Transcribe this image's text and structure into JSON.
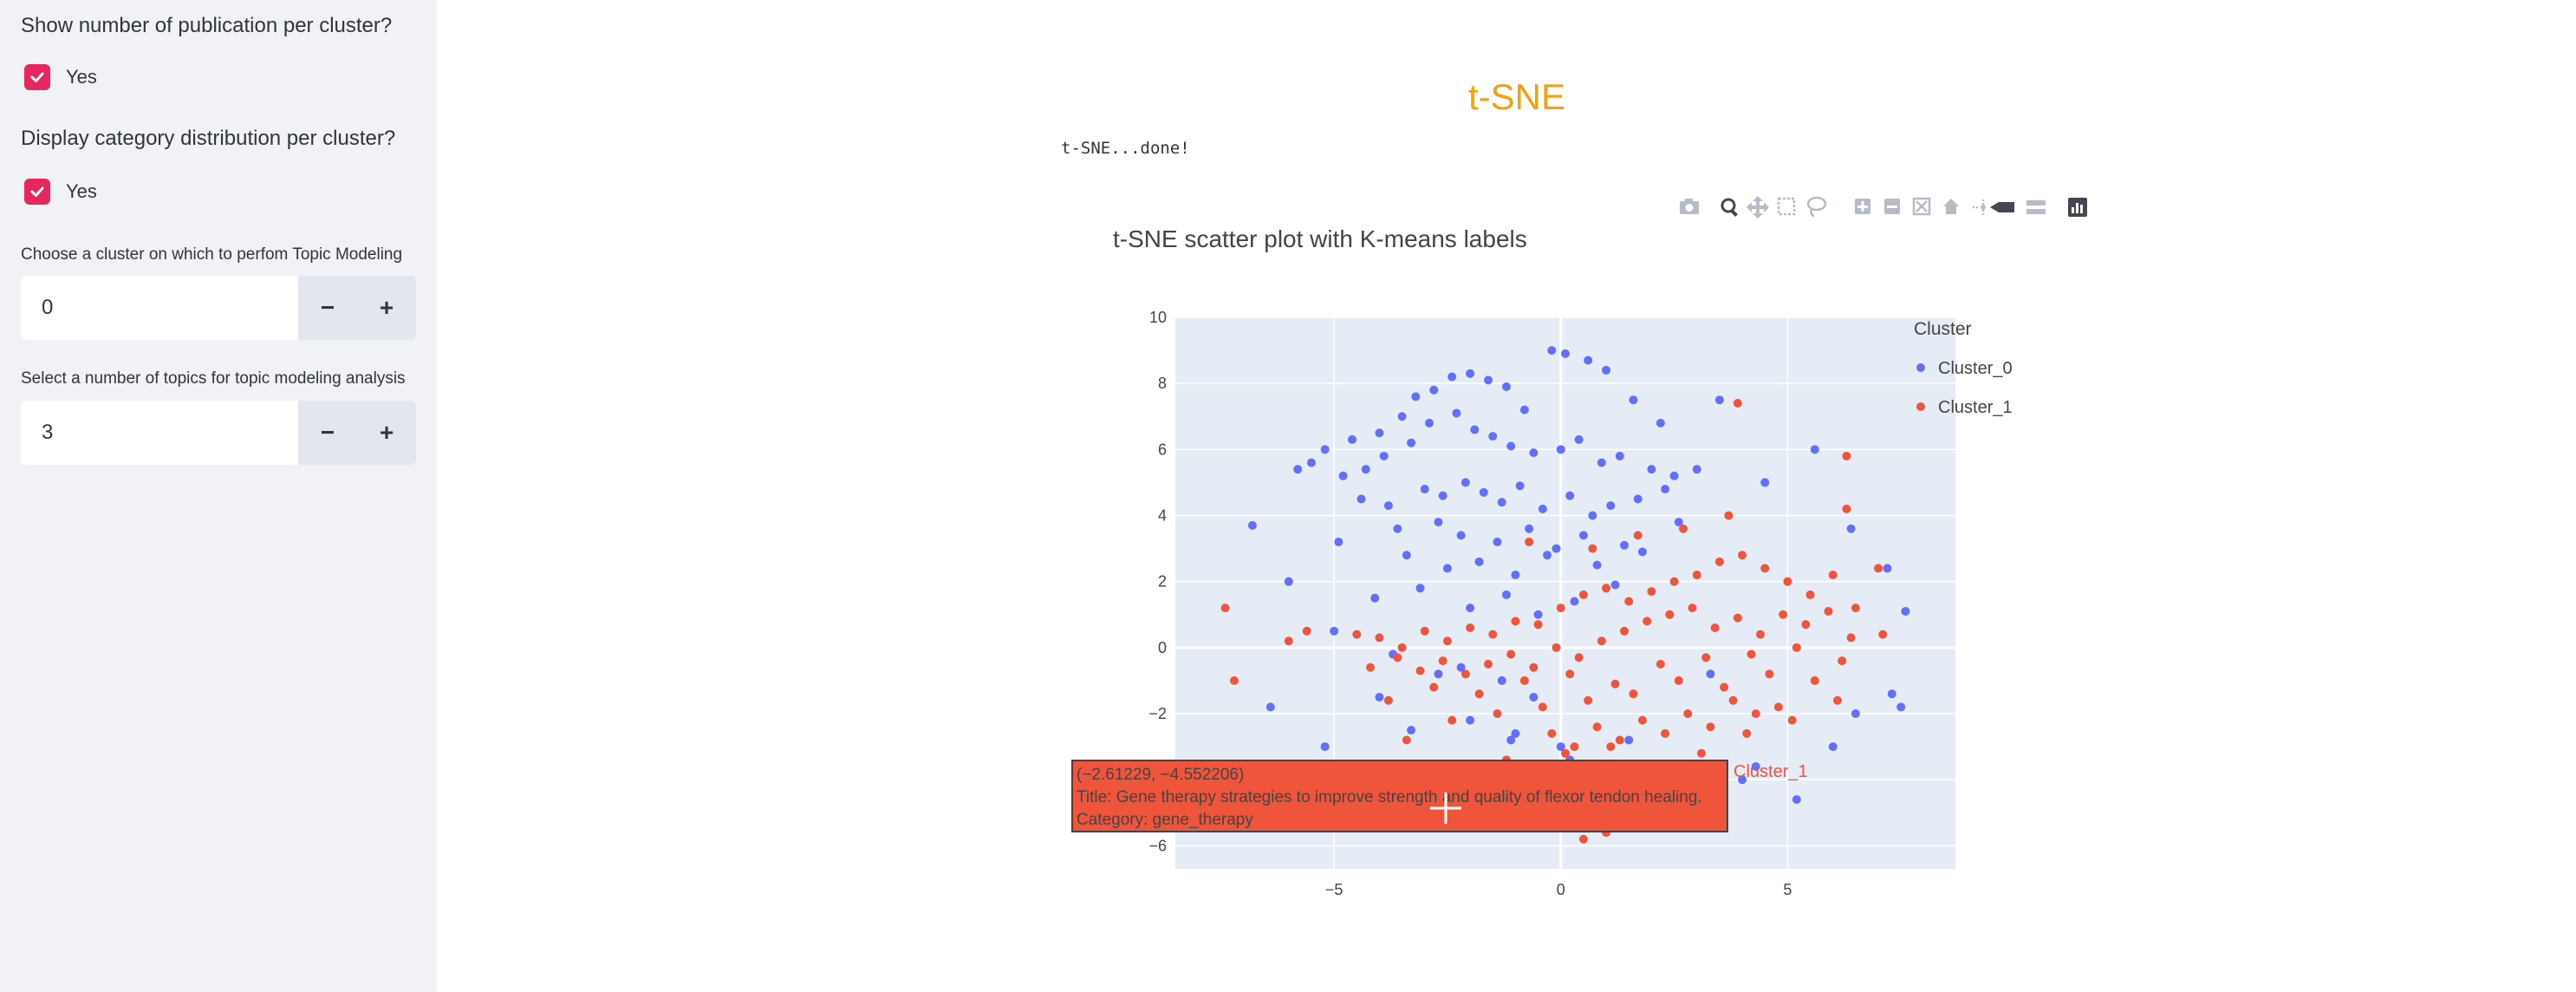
{
  "sidebar": {
    "q_publications": "Show number of publication per cluster?",
    "q_publications_option": "Yes",
    "q_category": "Display category distribution per cluster?",
    "q_category_option": "Yes",
    "cluster_label": "Choose a cluster on which to perfom Topic Modeling",
    "cluster_value": "0",
    "topics_label": "Select a number of topics for topic modeling analysis",
    "topics_value": "3",
    "minus": "−",
    "plus": "+"
  },
  "main": {
    "title": "t-SNE",
    "status": "t-SNE...done!"
  },
  "colors": {
    "title": "#f0a30a",
    "cluster_0": "#636efa",
    "cluster_1": "#ef553b",
    "checkbox": "#e6265e"
  },
  "modebar_icons": [
    "camera-icon",
    "zoom-icon",
    "pan-icon",
    "box-select-icon",
    "lasso-icon",
    "zoom-in-icon",
    "zoom-out-icon",
    "autoscale-icon",
    "reset-axes-icon",
    "spike-lines-icon",
    "hover-closest-icon",
    "hover-compare-icon",
    "plotly-logo-icon"
  ],
  "chart_data": {
    "type": "scatter",
    "title": "t-SNE scatter plot with K-means labels",
    "xlim": [
      -8.5,
      8.7
    ],
    "ylim": [
      -6.7,
      10
    ],
    "xticks": [
      -5,
      0,
      5
    ],
    "yticks": [
      -6,
      -2,
      0,
      2,
      4,
      6,
      8,
      10
    ],
    "xtick_labels": [
      "−5",
      "0",
      "5"
    ],
    "ytick_labels": [
      "−6",
      "−2",
      "0",
      "2",
      "4",
      "6",
      "8",
      "10"
    ],
    "legend": {
      "title": "Cluster",
      "placement": "right"
    },
    "series": [
      {
        "name": "Cluster_0",
        "color": "#636efa",
        "x": [
          -5.5,
          -5.2,
          -4.6,
          -4.0,
          -3.5,
          -3.2,
          -2.8,
          -2.4,
          -2.0,
          -1.6,
          -1.2,
          -0.8,
          -0.2,
          0.1,
          0.6,
          1.0,
          1.6,
          2.2,
          -4.8,
          -4.3,
          -3.9,
          -3.3,
          -2.9,
          -2.3,
          -1.9,
          -1.5,
          -1.1,
          -0.6,
          0.0,
          0.4,
          0.9,
          1.3,
          2.0,
          2.5,
          -4.4,
          -3.8,
          -3.0,
          -2.6,
          -2.1,
          -1.7,
          -1.3,
          -0.9,
          -0.4,
          0.2,
          0.7,
          1.1,
          1.7,
          2.3,
          3.0,
          -5.8,
          -3.6,
          -2.7,
          -2.2,
          -1.4,
          -0.7,
          -0.1,
          0.5,
          1.4,
          2.6,
          -4.9,
          -3.4,
          -2.5,
          -1.8,
          -1.0,
          -0.3,
          0.8,
          1.8,
          -4.1,
          -3.1,
          -2.0,
          -1.2,
          -0.5,
          0.3,
          1.2,
          -6.8,
          -6.0,
          -5.0,
          -3.7,
          -2.2,
          -1.3,
          -0.6,
          3.5,
          4.5,
          5.6,
          6.4,
          7.2,
          7.6,
          -3.3,
          -2.0,
          -1.0,
          0.0,
          1.5,
          4.0,
          5.2,
          6.5,
          7.3,
          -6.4,
          -5.2,
          -4.0,
          -2.7,
          -1.1,
          0.2,
          1.0,
          2.8,
          3.3,
          4.3,
          6.0,
          7.5
        ],
        "y": [
          5.6,
          6.0,
          6.3,
          6.5,
          7.0,
          7.6,
          7.8,
          8.2,
          8.3,
          8.1,
          7.9,
          7.2,
          9.0,
          8.9,
          8.7,
          8.4,
          7.5,
          6.8,
          5.2,
          5.4,
          5.8,
          6.2,
          6.8,
          7.1,
          6.6,
          6.4,
          6.1,
          5.9,
          6.0,
          6.3,
          5.6,
          5.8,
          5.4,
          5.2,
          4.5,
          4.3,
          4.8,
          4.6,
          5.0,
          4.7,
          4.4,
          4.9,
          4.2,
          4.6,
          4.0,
          4.3,
          4.5,
          4.8,
          5.4,
          5.4,
          3.6,
          3.8,
          3.4,
          3.2,
          3.6,
          3.0,
          3.4,
          3.1,
          3.8,
          3.2,
          2.8,
          2.4,
          2.6,
          2.2,
          2.8,
          2.5,
          2.9,
          1.5,
          1.8,
          1.2,
          1.6,
          1.0,
          1.4,
          1.9,
          3.7,
          2.0,
          0.5,
          -0.2,
          -0.6,
          -1.0,
          -1.5,
          7.5,
          5.0,
          6.0,
          3.6,
          2.4,
          1.1,
          -2.5,
          -2.2,
          -2.6,
          -3.0,
          -2.8,
          -4.0,
          -4.6,
          -2.0,
          -1.4,
          -1.8,
          -3.0,
          -1.5,
          -0.8,
          -2.8,
          -3.4,
          -4.1,
          -5.0,
          -0.8,
          -3.6,
          -3.0,
          -1.8
        ],
        "y_note": ""
      },
      {
        "name": "Cluster_1",
        "color": "#ef553b",
        "x": [
          -7.4,
          -7.2,
          -6.0,
          -4.5,
          -4.0,
          -3.5,
          -3.0,
          -2.5,
          -2.0,
          -1.5,
          -1.0,
          -0.5,
          0.0,
          0.5,
          1.0,
          1.5,
          2.0,
          2.5,
          3.0,
          3.5,
          4.0,
          4.5,
          5.0,
          5.5,
          6.0,
          6.5,
          7.0,
          -4.2,
          -3.6,
          -3.1,
          -2.6,
          -2.1,
          -1.6,
          -1.1,
          -0.6,
          -0.1,
          0.4,
          0.9,
          1.4,
          1.9,
          2.4,
          2.9,
          3.4,
          3.9,
          4.4,
          4.9,
          5.4,
          5.9,
          6.4,
          -3.8,
          -2.8,
          -1.8,
          -0.8,
          0.2,
          1.2,
          2.2,
          3.2,
          4.2,
          5.2,
          6.2,
          -2.4,
          -1.4,
          -0.4,
          0.6,
          1.6,
          2.6,
          3.6,
          4.6,
          5.6,
          -0.2,
          0.8,
          1.8,
          2.8,
          3.8,
          4.8,
          0.3,
          1.3,
          2.3,
          3.3,
          4.3,
          -0.7,
          0.7,
          1.7,
          2.7,
          3.7,
          -1.2,
          0.1,
          1.1,
          2.1,
          3.1,
          4.1,
          5.1,
          6.1,
          7.1,
          -5.6,
          3.9,
          6.3,
          6.3,
          0.5,
          -3.4,
          -1.0,
          1.0,
          3.0
        ],
        "y": [
          1.2,
          -1.0,
          0.2,
          0.4,
          0.3,
          0.0,
          0.5,
          0.2,
          0.6,
          0.4,
          0.8,
          0.7,
          1.2,
          1.6,
          1.8,
          1.4,
          1.7,
          2.0,
          2.2,
          2.6,
          2.8,
          2.4,
          2.0,
          1.6,
          2.2,
          1.2,
          2.4,
          -0.6,
          -0.3,
          -0.7,
          -0.4,
          -0.8,
          -0.5,
          -0.2,
          -0.6,
          0.0,
          -0.3,
          0.2,
          0.5,
          0.8,
          1.0,
          1.2,
          0.6,
          0.9,
          0.4,
          1.0,
          0.7,
          1.1,
          0.3,
          -1.6,
          -1.2,
          -1.4,
          -1.0,
          -0.8,
          -1.1,
          -0.5,
          -0.3,
          -0.2,
          0.0,
          -0.4,
          -2.2,
          -2.0,
          -1.8,
          -1.6,
          -1.4,
          -1.0,
          -1.2,
          -0.8,
          -1.0,
          -2.6,
          -2.4,
          -2.2,
          -2.0,
          -1.6,
          -1.8,
          -3.0,
          -2.8,
          -2.6,
          -2.4,
          -2.0,
          3.2,
          3.0,
          3.4,
          3.6,
          4.0,
          -3.4,
          -3.2,
          -3.0,
          -3.6,
          -3.2,
          -2.6,
          -2.2,
          -1.6,
          0.4,
          0.5,
          7.4,
          5.8,
          4.2,
          -5.8,
          -2.8,
          -5.4,
          -5.6,
          -5.2
        ]
      }
    ]
  },
  "hover": {
    "coords": "(−2.61229, −4.552206)",
    "title": "Title: Gene therapy strategies to improve strength and quality of flexor tendon healing.",
    "category": "Category: gene_therapy",
    "cluster": "Cluster_1"
  }
}
